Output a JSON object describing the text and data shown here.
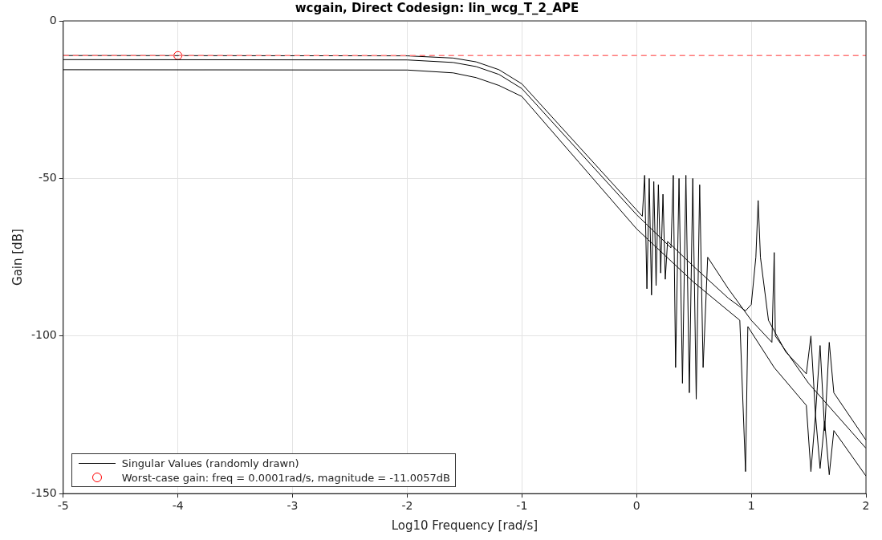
{
  "chart_data": {
    "type": "line",
    "title": "wcgain, Direct Codesign: lin_wcg_T_2_APE",
    "xlabel": "Log10 Frequency [rad/s]",
    "ylabel": "Gain [dB]",
    "xlim": [
      -5,
      2
    ],
    "xticks": [
      -5,
      -4,
      -3,
      -2,
      -1,
      0,
      1,
      2
    ],
    "ylim": [
      -150,
      0
    ],
    "yticks": [
      -150,
      -100,
      -50,
      0
    ],
    "grid": true,
    "legend": "bottom left",
    "marker": "none",
    "line_style": "solid",
    "series": [
      {
        "name": "Singular Values (randomly drawn)",
        "color": "#000000",
        "x": [
          -5,
          -2,
          -1.6,
          -1.4,
          -1.2,
          -1,
          -0.5,
          0,
          0.05,
          0.07,
          0.09,
          0.11,
          0.13,
          0.15,
          0.17,
          0.19,
          0.21,
          0.23,
          0.25,
          0.27,
          0.5,
          0.8,
          0.95,
          1.0,
          1.04,
          1.06,
          1.08,
          1.15,
          1.3,
          1.48,
          1.52,
          1.56,
          1.6,
          1.64,
          1.68,
          1.72,
          2
        ],
        "values": [
          -11,
          -11.1,
          -11.8,
          -13,
          -15.5,
          -20,
          -40,
          -60,
          -62,
          -49,
          -85,
          -50,
          -87,
          -51,
          -84,
          -52,
          -80,
          -55,
          -82,
          -70,
          -78,
          -88,
          -92,
          -90,
          -75,
          -57,
          -75,
          -95,
          -105,
          -112,
          -100,
          -125,
          -103,
          -130,
          -102,
          -118,
          -133
        ]
      },
      {
        "color": "#000000",
        "x": [
          -5,
          -2,
          -1.6,
          -1.4,
          -1.2,
          -1,
          -0.5,
          0,
          0.3,
          0.32,
          0.34,
          0.37,
          0.4,
          0.43,
          0.46,
          0.49,
          0.52,
          0.55,
          0.58,
          0.62,
          0.8,
          1,
          1.18,
          1.2,
          1.21,
          1.5,
          2
        ],
        "values": [
          -12.3,
          -12.4,
          -13.2,
          -14.5,
          -17,
          -21.5,
          -41.5,
          -61.5,
          -72,
          -49,
          -110,
          -50,
          -115,
          -49,
          -118,
          -50,
          -120,
          -52,
          -110,
          -75,
          -85,
          -95,
          -102,
          -73.5,
          -100,
          -115,
          -135.6
        ]
      },
      {
        "color": "#000000",
        "x": [
          -5,
          -2,
          -1.6,
          -1.4,
          -1.2,
          -1,
          -0.5,
          0,
          0.5,
          0.9,
          0.95,
          0.97,
          1.2,
          1.48,
          1.52,
          1.56,
          1.6,
          1.64,
          1.68,
          1.72,
          2
        ],
        "values": [
          -15.5,
          -15.6,
          -16.5,
          -18,
          -20.5,
          -24,
          -45,
          -66,
          -83,
          -95,
          -143,
          -97,
          -110,
          -122,
          -143,
          -125,
          -142,
          -127,
          -144,
          -130,
          -144.4
        ]
      },
      {
        "type": "scatter",
        "name": "Worst-case gain: freq = 0.0001rad/s, magnitude = -11.0057dB",
        "color": "#ff0000",
        "marker": "circle",
        "x": [
          -4
        ],
        "values": [
          -11.0057
        ]
      }
    ],
    "ref_lines": [
      {
        "axis": "y",
        "value": -11.0057,
        "color": "#ff7777",
        "line_style": "dashed"
      }
    ]
  }
}
